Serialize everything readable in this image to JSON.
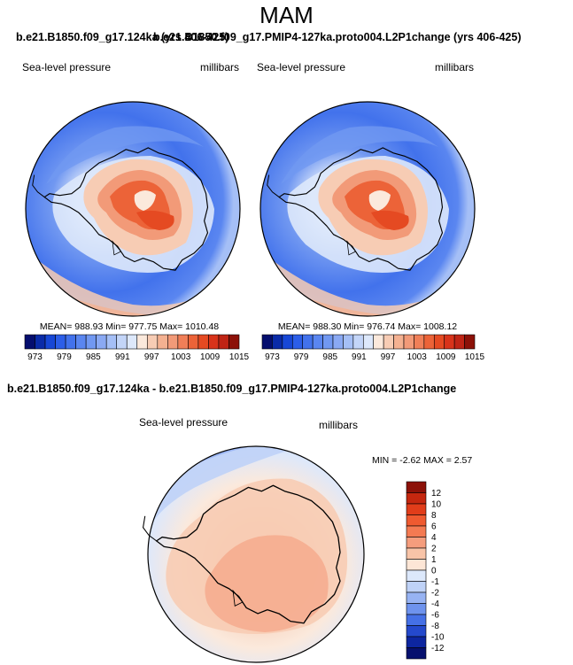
{
  "title": "MAM",
  "left_case": "b.e21.B1850.f09_g17.124ka (yrs 406-425)",
  "right_case": "b.e21.B1850.f09_g17.PMIP4-127ka.proto004.L2P1change (yrs 406-425)",
  "diff_title": "b.e21.B1850.f09_g17.124ka - b.e21.B1850.f09_g17.PMIP4-127ka.proto004.L2P1change",
  "chart_data": [
    {
      "type": "heatmap",
      "projection": "south polar stereographic",
      "variable": "Sea-level pressure",
      "units": "millibars",
      "stats": "MEAN= 988.93  Min= 977.75  Max= 1010.48",
      "mean": 988.93,
      "min": 977.75,
      "max": 1010.48,
      "colorbar": {
        "orientation": "horizontal",
        "levels": [
          973,
          975,
          977,
          979,
          981,
          983,
          985,
          987,
          989,
          991,
          993,
          995,
          997,
          999,
          1001,
          1003,
          1005,
          1007,
          1009,
          1011,
          1013,
          1015
        ],
        "tick_labels": [
          "973",
          "979",
          "985",
          "991",
          "997",
          "1003",
          "1009",
          "1015"
        ],
        "colors": [
          "#050e6e",
          "#0a2ba8",
          "#1747d6",
          "#2c5ee8",
          "#4272ec",
          "#5a86f0",
          "#7198f1",
          "#8aa9f3",
          "#a5bff6",
          "#c3d5f8",
          "#dde8fb",
          "#fbe9dc",
          "#f7ccb4",
          "#f4b191",
          "#f29a78",
          "#f07f58",
          "#ec6338",
          "#e54a22",
          "#d8331a",
          "#bf2415",
          "#8c1108"
        ]
      }
    },
    {
      "type": "heatmap",
      "projection": "south polar stereographic",
      "variable": "Sea-level pressure",
      "units": "millibars",
      "stats": "MEAN= 988.30  Min= 976.74  Max= 1008.12",
      "mean": 988.3,
      "min": 976.74,
      "max": 1008.12,
      "colorbar": {
        "orientation": "horizontal",
        "levels": [
          973,
          975,
          977,
          979,
          981,
          983,
          985,
          987,
          989,
          991,
          993,
          995,
          997,
          999,
          1001,
          1003,
          1005,
          1007,
          1009,
          1011,
          1013,
          1015
        ],
        "tick_labels": [
          "973",
          "979",
          "985",
          "991",
          "997",
          "1003",
          "1009",
          "1015"
        ],
        "colors": [
          "#050e6e",
          "#0a2ba8",
          "#1747d6",
          "#2c5ee8",
          "#4272ec",
          "#5a86f0",
          "#7198f1",
          "#8aa9f3",
          "#a5bff6",
          "#c3d5f8",
          "#dde8fb",
          "#fbe9dc",
          "#f7ccb4",
          "#f4b191",
          "#f29a78",
          "#f07f58",
          "#ec6338",
          "#e54a22",
          "#d8331a",
          "#bf2415",
          "#8c1108"
        ]
      }
    },
    {
      "type": "heatmap",
      "projection": "south polar stereographic",
      "variable": "Sea-level pressure",
      "units": "millibars",
      "stats": "MIN = -2.62  MAX =  2.57",
      "min": -2.62,
      "max": 2.57,
      "colorbar": {
        "orientation": "vertical",
        "tick_labels": [
          "12",
          "10",
          "8",
          "6",
          "4",
          "2",
          "1",
          "0",
          "-1",
          "-2",
          "-4",
          "-6",
          "-8",
          "-10",
          "-12"
        ],
        "colors": [
          "#8c1108",
          "#c5270f",
          "#e13d1a",
          "#ef5a30",
          "#f47a52",
          "#f59d7d",
          "#f8c4a8",
          "#fde6d6",
          "#dce8fb",
          "#bfd2f7",
          "#97b3f3",
          "#6e93ee",
          "#4570e6",
          "#2449cc",
          "#0d26a0",
          "#06106e"
        ]
      }
    }
  ]
}
